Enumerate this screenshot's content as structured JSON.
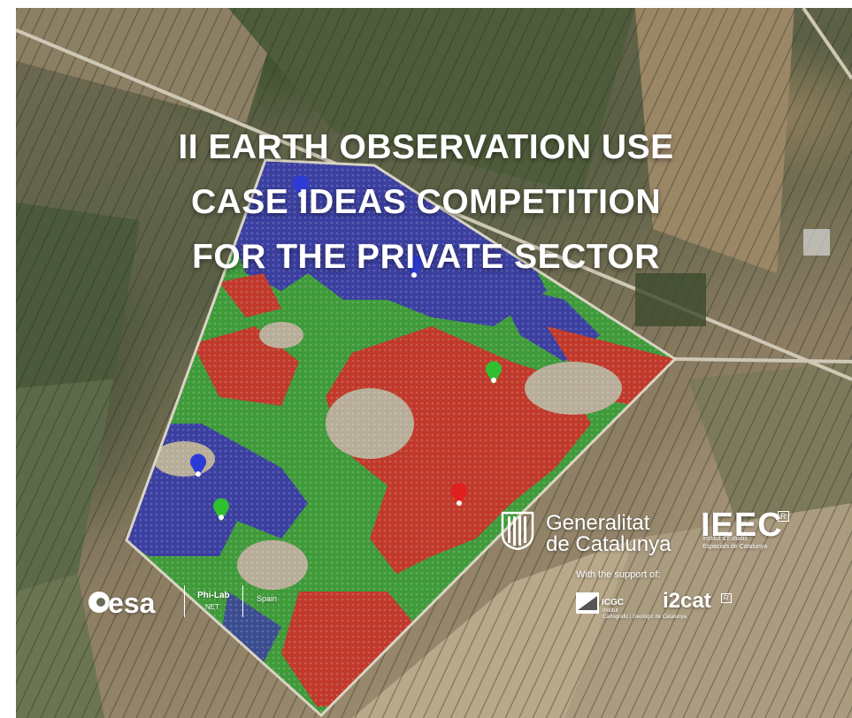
{
  "title_lines": [
    "II EARTH OBSERVATION USE",
    "CASE IDEAS COMPETITION",
    "FOR THE PRIVATE SECTOR"
  ],
  "logos": {
    "generalitat_line1": "Generalitat",
    "generalitat_line2": "de Catalunya",
    "ieec": "IEEC",
    "ieec_registered": "R",
    "ieec_sub_line1": "Institut d'Estudis",
    "ieec_sub_line2": "Espacials de Catalunya",
    "support_text": "With the support of:",
    "icgc": "ICGC",
    "icgc_sub_line1": "Institut",
    "icgc_sub_line2": "Cartogràfic i Geològic de Catalunya",
    "i2cat": "i2cat",
    "i2cat_registered": "R",
    "esa": "esa",
    "philab_line1": "Phi-Lab",
    "philab_line2": "NET",
    "spain": "Spain"
  },
  "colors": {
    "blue_zone": "#3b3fa0",
    "green_zone": "#3f9a3a",
    "red_zone": "#c0392b",
    "pin_blue": "#2d3bd6",
    "pin_green": "#2fbf2f",
    "pin_red": "#e21f1f"
  }
}
